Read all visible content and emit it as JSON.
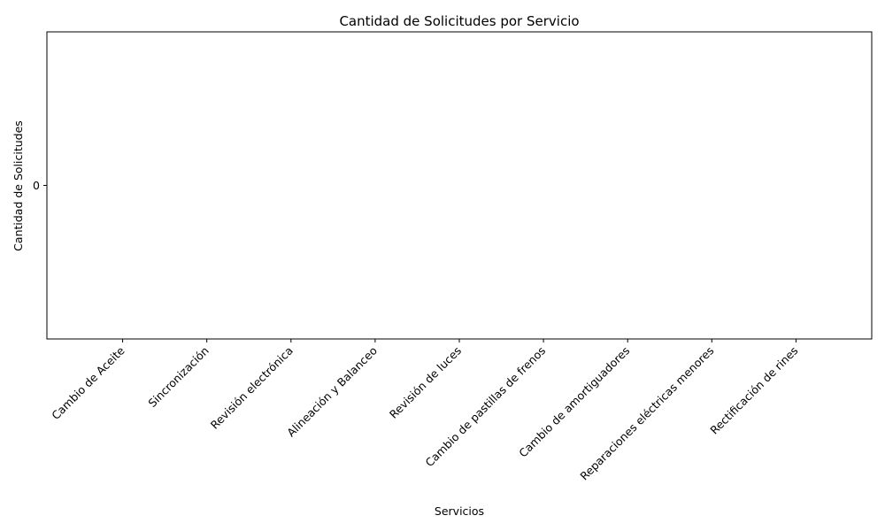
{
  "chart_data": {
    "type": "bar",
    "title": "Cantidad de Solicitudes por Servicio",
    "xlabel": "Servicios",
    "ylabel": "Cantidad de Solicitudes",
    "categories": [
      "Cambio de Aceite",
      "Sincronización",
      "Revisión electrónica",
      "Alineación y Balanceo",
      "Revisión de luces",
      "Cambio de pastillas de frenos",
      "Cambio de amortiguadores",
      "Reparaciones eléctricas menores",
      "Rectificación de rines"
    ],
    "values": [
      0,
      0,
      0,
      0,
      0,
      0,
      0,
      0,
      0
    ],
    "yticks": [
      0
    ],
    "ylim": [
      -0.055,
      0.055
    ],
    "grid": false,
    "legend": "none"
  }
}
